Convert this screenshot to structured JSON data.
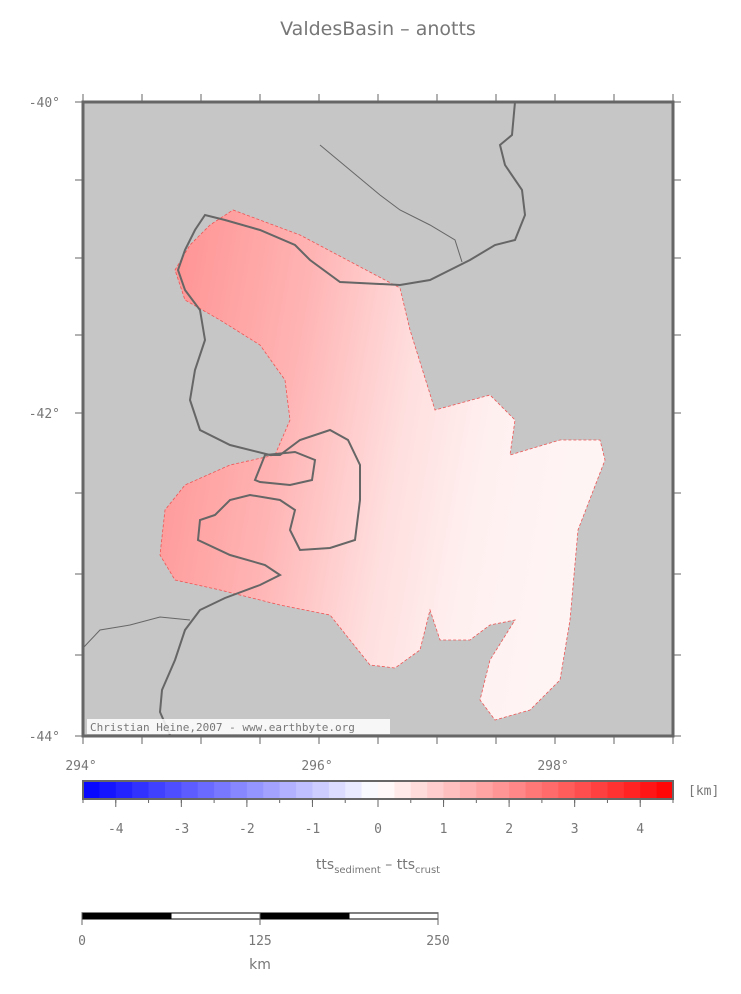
{
  "title": "ValdesBasin – anotts",
  "map": {
    "lat_labels": [
      "-40°",
      "-42°",
      "-44°"
    ],
    "lon_labels": [
      "294°",
      "296°",
      "298°"
    ],
    "credit": "Christian Heine,2007 - www.earthbyte.org"
  },
  "colorbar": {
    "lim": [
      -4.5,
      4.5
    ],
    "ticks": [
      -4,
      -3,
      -2,
      -1,
      0,
      1,
      2,
      3,
      4
    ],
    "unit": "[km]",
    "label": [
      "tts",
      "sediment",
      " – tts",
      "crust"
    ]
  },
  "scalebar": {
    "lim": [
      0,
      250
    ],
    "ticks": [
      0,
      125,
      250
    ],
    "unit": "km"
  }
}
